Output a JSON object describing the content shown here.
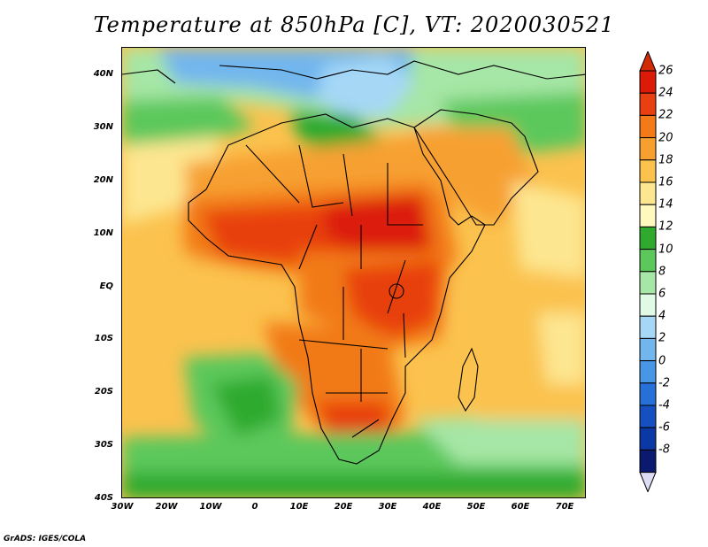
{
  "title": "Temperature at 850hPa [C], VT: 2020030521",
  "credit": "GrADS: IGES/COLA",
  "latitude_labels": [
    "40N",
    "30N",
    "20N",
    "10N",
    "EQ",
    "10S",
    "20S",
    "30S",
    "40S"
  ],
  "longitude_labels": [
    "30W",
    "20W",
    "10W",
    "0",
    "10E",
    "20E",
    "30E",
    "40E",
    "50E",
    "60E",
    "70E"
  ],
  "colorbar": {
    "labels": [
      "26",
      "24",
      "22",
      "20",
      "18",
      "16",
      "14",
      "12",
      "10",
      "8",
      "6",
      "4",
      "2",
      "0",
      "-2",
      "-4",
      "-6",
      "-8"
    ],
    "colors": [
      "#dc1a08",
      "#e84010",
      "#f27a18",
      "#f7a030",
      "#fbc24e",
      "#fde690",
      "#fff9c0",
      "#2faa2f",
      "#5cc85c",
      "#a6e6a6",
      "#e0fae6",
      "#a6d8f6",
      "#72b6ee",
      "#4896e6",
      "#2670d8",
      "#1650c0",
      "#0c38a6",
      "#0a1a6e"
    ],
    "overflow_top": "#d32a06",
    "overflow_bottom": "#dcdcf4"
  }
}
